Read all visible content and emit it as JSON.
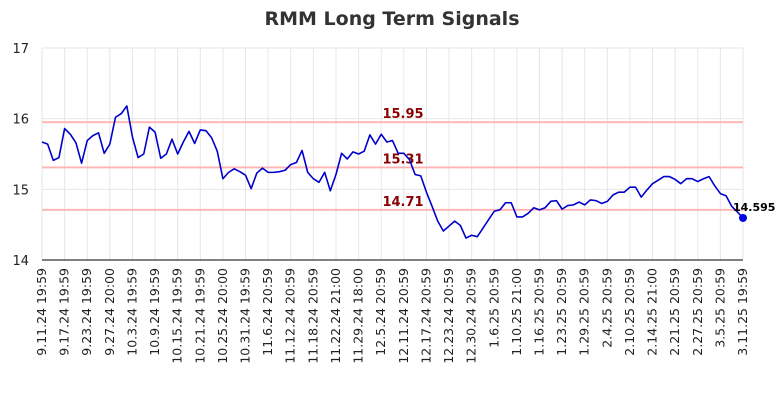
{
  "chart_data": {
    "type": "line",
    "title": "RMM Long Term Signals",
    "ylim": [
      14,
      17
    ],
    "yticks": [
      "14",
      "15",
      "16",
      "17"
    ],
    "xtick_labels": [
      "9.11.24 19:59",
      "9.17.24 19:59",
      "9.23.24 19:59",
      "9.27.24 20:00",
      "10.3.24 19:59",
      "10.9.24 19:59",
      "10.15.24 19:59",
      "10.21.24 19:59",
      "10.25.24 20:00",
      "10.31.24 19:59",
      "11.6.24 20:59",
      "11.12.24 20:59",
      "11.18.24 20:59",
      "11.22.24 21:00",
      "11.29.24 18:00",
      "12.5.24 20:59",
      "12.11.24 20:59",
      "12.17.24 20:59",
      "12.23.24 20:59",
      "12.30.24 20:59",
      "1.6.25 20:59",
      "1.10.25 21:00",
      "1.16.25 20:59",
      "1.23.25 20:59",
      "1.29.25 20:59",
      "2.4.25 20:59",
      "2.10.25 20:59",
      "2.14.25 21:00",
      "2.21.25 20:59",
      "2.27.25 20:59",
      "3.5.25 20:59",
      "3.11.25 19:59"
    ],
    "series": [
      {
        "values": [
          15.67,
          15.64,
          15.41,
          15.45,
          15.86,
          15.78,
          15.66,
          15.37,
          15.69,
          15.76,
          15.8,
          15.51,
          15.64,
          16.02,
          16.07,
          16.18,
          15.74,
          15.45,
          15.5,
          15.88,
          15.81,
          15.44,
          15.5,
          15.71,
          15.5,
          15.67,
          15.82,
          15.65,
          15.84,
          15.83,
          15.73,
          15.54,
          15.15,
          15.24,
          15.29,
          15.25,
          15.2,
          15.01,
          15.23,
          15.3,
          15.24,
          15.24,
          15.25,
          15.27,
          15.35,
          15.38,
          15.55,
          15.24,
          15.15,
          15.1,
          15.24,
          14.98,
          15.21,
          15.51,
          15.43,
          15.53,
          15.5,
          15.54,
          15.77,
          15.64,
          15.78,
          15.67,
          15.69,
          15.51,
          15.51,
          15.42,
          15.21,
          15.19,
          14.96,
          14.76,
          14.55,
          14.41,
          14.48,
          14.55,
          14.49,
          14.31,
          14.35,
          14.33,
          14.45,
          14.57,
          14.69,
          14.71,
          14.81,
          14.81,
          14.61,
          14.61,
          14.66,
          14.74,
          14.71,
          14.74,
          14.83,
          14.84,
          14.72,
          14.77,
          14.78,
          14.82,
          14.78,
          14.85,
          14.84,
          14.8,
          14.83,
          14.92,
          14.96,
          14.96,
          15.03,
          15.03,
          14.89,
          14.99,
          15.08,
          15.13,
          15.18,
          15.18,
          15.14,
          15.08,
          15.15,
          15.15,
          15.11,
          15.15,
          15.18,
          15.05,
          14.94,
          14.91,
          14.76,
          14.68,
          14.595
        ]
      }
    ],
    "reference_lines": [
      {
        "value": 15.95,
        "label": "15.95"
      },
      {
        "value": 15.31,
        "label": "15.31"
      },
      {
        "value": 14.71,
        "label": "14.71"
      }
    ],
    "last_value_label": "14.595",
    "grid": true,
    "colors": {
      "line": "#0000cc",
      "last_point": "#0000ee",
      "ref_line": "#ffb3b3",
      "ref_label": "#8b0000",
      "grid": "#e6e6e6",
      "title": "#333333"
    }
  }
}
